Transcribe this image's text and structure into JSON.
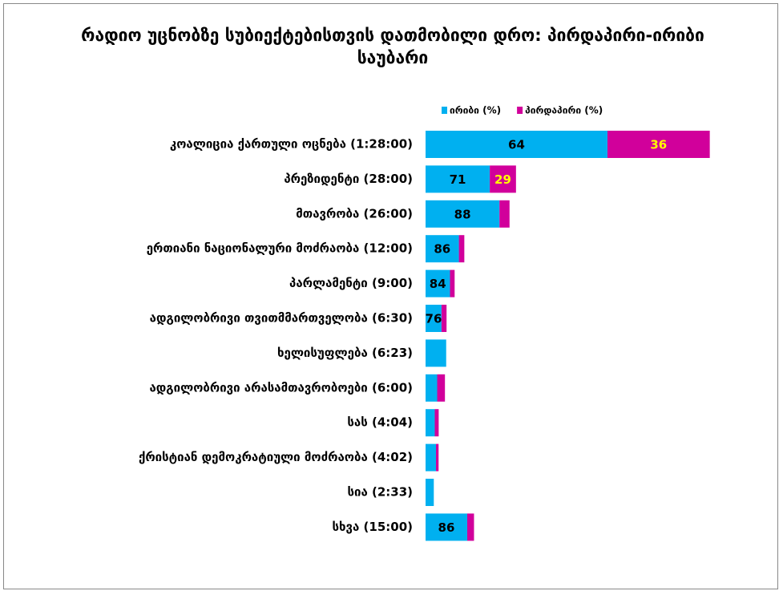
{
  "chart_data": {
    "type": "bar",
    "title": "რადიო უცნობზე  სუბიექტებისთვის დათმობილი დრო: პირდაპირი-ირიბი საუბარი",
    "categories": [
      "კოალიცია ქართული ოცნება (1:28:00)",
      "პრეზიდენტი (28:00)",
      "მთავრობა (26:00)",
      "ერთიანი ნაციონალური მოძრაობა (12:00)",
      "პარლამენტი (9:00)",
      "ადგილობრივი თვითმმართველობა (6:30)",
      "ხელისუფლება (6:23)",
      "ადგილობრივი არასამთავრობოები (6:00)",
      "სას (4:04)",
      "ქრისტიან დემოკრატიული მოძრაობა (4:02)",
      "სია (2:33)",
      "სხვა (15:00)"
    ],
    "durations": [
      88,
      28,
      26,
      12,
      9,
      6.5,
      6.383,
      6,
      4.067,
      4.033,
      2.55,
      15
    ],
    "series": [
      {
        "name": "ირიბი (%)",
        "color": "#00b0f0",
        "label_color": "#000000",
        "values": [
          64,
          71,
          88,
          86,
          84,
          76,
          100,
          60,
          70,
          80,
          100,
          86
        ],
        "value_labels": [
          "64",
          "71",
          "88",
          "86",
          "84",
          "76",
          null,
          null,
          null,
          null,
          null,
          "86"
        ]
      },
      {
        "name": "პირდაპირი (%)",
        "color": "#d1009b",
        "label_color": "#ffff00",
        "values": [
          36,
          29,
          12,
          14,
          16,
          24,
          0,
          40,
          30,
          20,
          0,
          14
        ],
        "value_labels": [
          "36",
          "29",
          null,
          null,
          null,
          null,
          null,
          null,
          null,
          null,
          null,
          null
        ]
      }
    ],
    "stacked": true,
    "legend": "top"
  }
}
